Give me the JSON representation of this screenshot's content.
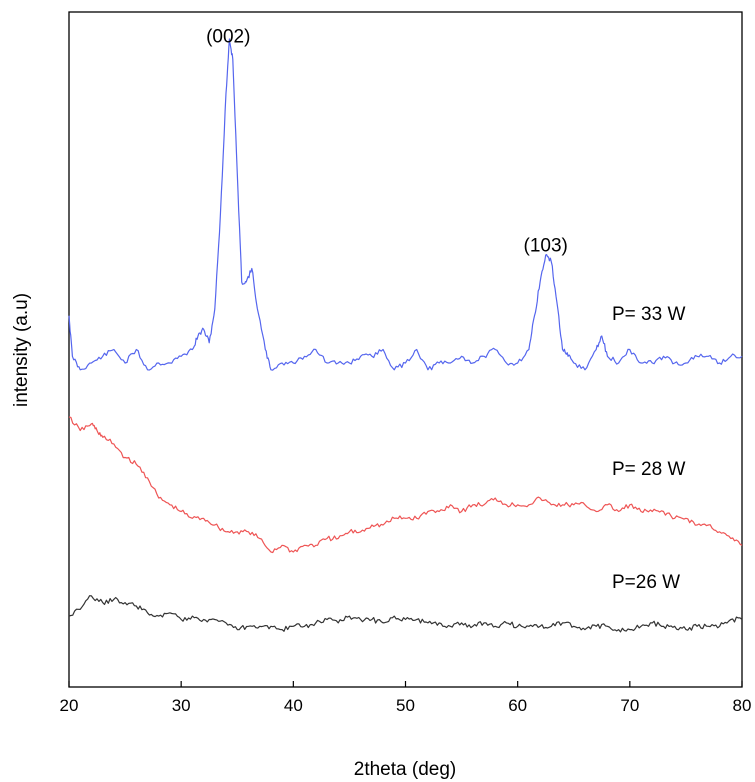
{
  "chart_data": {
    "type": "line",
    "xlabel": "2theta (deg)",
    "ylabel": "intensity (a.u)",
    "xlim": [
      20,
      80
    ],
    "ylim": [
      0,
      1
    ],
    "x_ticks": [
      "20",
      "30",
      "40",
      "50",
      "60",
      "70",
      "80"
    ],
    "grid": false,
    "legend": "none",
    "annotations": [
      {
        "text": "(002)",
        "x": 34.2,
        "y": 0.955
      },
      {
        "text": "(103)",
        "x": 62.5,
        "y": 0.645
      }
    ],
    "series": [
      {
        "name": "P= 33 W",
        "color": "#5566ee",
        "x": [
          20,
          20.3,
          21,
          22,
          23,
          24,
          25,
          26,
          27,
          28,
          29,
          30,
          31,
          31.5,
          32,
          32.5,
          33,
          33.5,
          34,
          34.3,
          34.6,
          35,
          35.4,
          35.8,
          36.3,
          36.8,
          37.5,
          38,
          39,
          40,
          41,
          42,
          43,
          44,
          45,
          46,
          47,
          48,
          49,
          50,
          51,
          52,
          53,
          54,
          55,
          56,
          57,
          58,
          59,
          60,
          61,
          61.5,
          62,
          62.5,
          63,
          63.5,
          64,
          64.5,
          65,
          66,
          67,
          67.5,
          68,
          69,
          70,
          71,
          72,
          73,
          74,
          75,
          76,
          77,
          78,
          79,
          80
        ],
        "y": [
          0.55,
          0.49,
          0.47,
          0.48,
          0.49,
          0.5,
          0.48,
          0.5,
          0.47,
          0.48,
          0.48,
          0.49,
          0.5,
          0.52,
          0.53,
          0.51,
          0.56,
          0.7,
          0.88,
          0.96,
          0.93,
          0.76,
          0.6,
          0.6,
          0.62,
          0.56,
          0.5,
          0.47,
          0.48,
          0.48,
          0.49,
          0.5,
          0.48,
          0.48,
          0.48,
          0.49,
          0.49,
          0.5,
          0.47,
          0.48,
          0.5,
          0.47,
          0.48,
          0.48,
          0.49,
          0.48,
          0.49,
          0.5,
          0.48,
          0.48,
          0.5,
          0.55,
          0.6,
          0.64,
          0.63,
          0.57,
          0.5,
          0.49,
          0.48,
          0.47,
          0.5,
          0.52,
          0.49,
          0.48,
          0.5,
          0.48,
          0.48,
          0.49,
          0.48,
          0.48,
          0.49,
          0.49,
          0.48,
          0.49,
          0.49
        ]
      },
      {
        "name": "P= 28 W",
        "color": "#ee5555",
        "x": [
          20,
          21,
          22,
          22.5,
          23,
          24,
          25,
          26,
          27,
          28,
          29,
          30,
          31,
          32,
          33,
          34,
          35,
          36,
          37,
          38,
          39,
          40,
          41,
          42,
          43,
          44,
          45,
          46,
          47,
          48,
          49,
          50,
          51,
          52,
          53,
          54,
          55,
          56,
          57,
          58,
          59,
          60,
          61,
          62,
          63,
          64,
          65,
          66,
          67,
          68,
          69,
          70,
          71,
          72,
          73,
          74,
          75,
          76,
          77,
          78,
          79,
          80
        ],
        "y": [
          0.4,
          0.38,
          0.39,
          0.38,
          0.37,
          0.36,
          0.34,
          0.33,
          0.31,
          0.28,
          0.27,
          0.26,
          0.25,
          0.25,
          0.24,
          0.23,
          0.23,
          0.23,
          0.22,
          0.2,
          0.21,
          0.2,
          0.21,
          0.21,
          0.22,
          0.22,
          0.23,
          0.23,
          0.24,
          0.24,
          0.25,
          0.25,
          0.25,
          0.26,
          0.26,
          0.27,
          0.26,
          0.27,
          0.27,
          0.28,
          0.27,
          0.27,
          0.27,
          0.28,
          0.27,
          0.27,
          0.27,
          0.27,
          0.26,
          0.27,
          0.26,
          0.27,
          0.26,
          0.26,
          0.26,
          0.25,
          0.25,
          0.24,
          0.24,
          0.23,
          0.22,
          0.21
        ]
      },
      {
        "name": "P=26 W",
        "color": "#333333",
        "x": [
          20,
          21,
          22,
          23,
          24,
          25,
          26,
          27,
          28,
          29,
          30,
          31,
          32,
          33,
          34,
          35,
          36,
          37,
          38,
          39,
          40,
          41,
          42,
          43,
          44,
          45,
          46,
          47,
          48,
          49,
          50,
          51,
          52,
          53,
          54,
          55,
          56,
          57,
          58,
          59,
          60,
          61,
          62,
          63,
          64,
          65,
          66,
          67,
          68,
          69,
          70,
          71,
          72,
          73,
          74,
          75,
          76,
          77,
          78,
          79,
          80
        ],
        "y": [
          0.105,
          0.115,
          0.135,
          0.125,
          0.13,
          0.125,
          0.12,
          0.11,
          0.105,
          0.11,
          0.1,
          0.105,
          0.1,
          0.1,
          0.095,
          0.085,
          0.09,
          0.09,
          0.09,
          0.085,
          0.09,
          0.09,
          0.095,
          0.1,
          0.095,
          0.105,
          0.1,
          0.1,
          0.095,
          0.105,
          0.1,
          0.1,
          0.095,
          0.095,
          0.09,
          0.095,
          0.09,
          0.095,
          0.09,
          0.095,
          0.09,
          0.09,
          0.09,
          0.09,
          0.095,
          0.09,
          0.085,
          0.09,
          0.09,
          0.085,
          0.085,
          0.09,
          0.095,
          0.09,
          0.09,
          0.085,
          0.09,
          0.09,
          0.09,
          0.1,
          0.1
        ]
      }
    ]
  }
}
